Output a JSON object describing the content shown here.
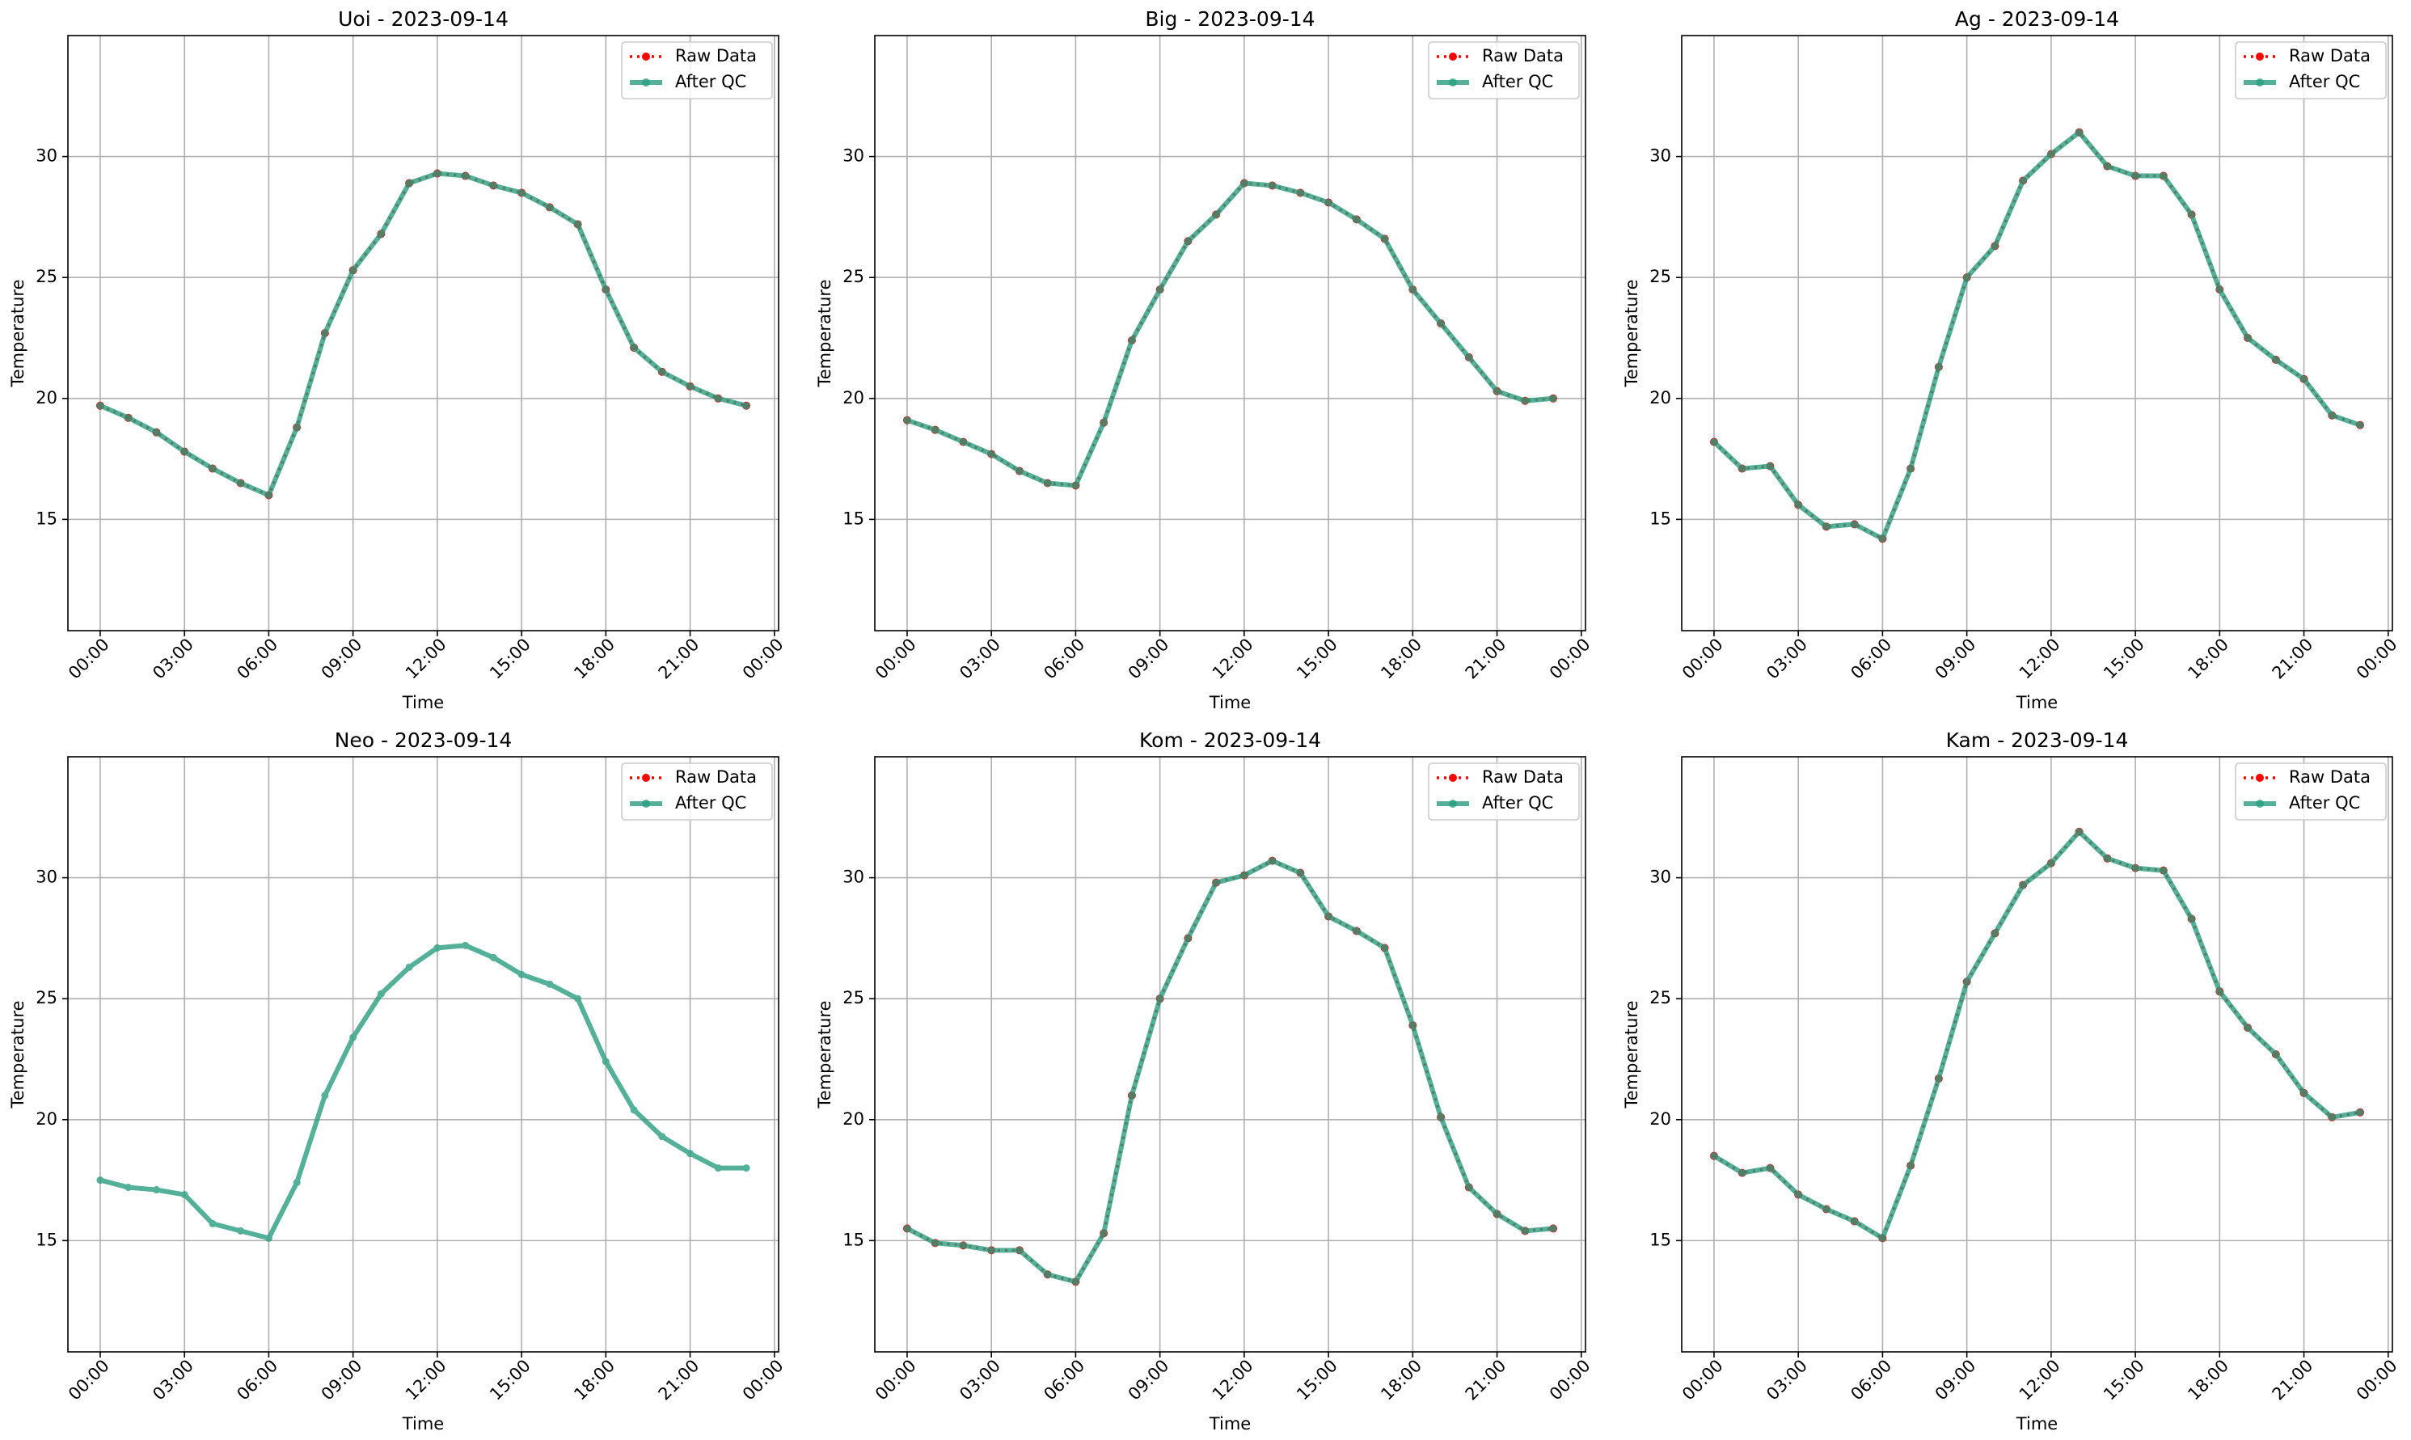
{
  "chart_data": [
    {
      "type": "line",
      "title": "Uoi - 2023-09-14",
      "xlabel": "Time",
      "ylabel": "Temperature",
      "grid": true,
      "legend": "upper right",
      "x": [
        0,
        1,
        2,
        3,
        4,
        5,
        6,
        7,
        8,
        9,
        10,
        11,
        12,
        13,
        14,
        15,
        16,
        17,
        18,
        19,
        20,
        21,
        22,
        23
      ],
      "xlim": [
        -1.15,
        24.15
      ],
      "ylim": [
        10.4,
        35
      ],
      "xticks": [
        {
          "value": 0,
          "label": "00:00"
        },
        {
          "value": 3,
          "label": "03:00"
        },
        {
          "value": 6,
          "label": "06:00"
        },
        {
          "value": 9,
          "label": "09:00"
        },
        {
          "value": 12,
          "label": "12:00"
        },
        {
          "value": 15,
          "label": "15:00"
        },
        {
          "value": 18,
          "label": "18:00"
        },
        {
          "value": 21,
          "label": "21:00"
        },
        {
          "value": 24,
          "label": "00:00"
        }
      ],
      "yticks": [
        15,
        20,
        25,
        30
      ],
      "series": [
        {
          "name": "Raw Data",
          "color": "red",
          "linestyle": ":",
          "values": [
            19.7,
            19.2,
            18.6,
            17.8,
            17.1,
            16.5,
            16.0,
            18.8,
            22.7,
            25.3,
            26.8,
            28.9,
            29.3,
            29.2,
            28.8,
            28.5,
            27.9,
            27.2,
            24.5,
            22.1,
            21.1,
            20.5,
            20.0,
            19.7
          ]
        },
        {
          "name": "After QC",
          "color": "#2a9d7f",
          "linestyle": "-",
          "values": [
            19.7,
            19.2,
            18.6,
            17.8,
            17.1,
            16.5,
            16.0,
            18.8,
            22.7,
            25.3,
            26.8,
            28.9,
            29.3,
            29.2,
            28.8,
            28.5,
            27.9,
            27.2,
            24.5,
            22.1,
            21.1,
            20.5,
            20.0,
            19.7
          ]
        }
      ]
    },
    {
      "type": "line",
      "title": "Big - 2023-09-14",
      "xlabel": "Time",
      "ylabel": "Temperature",
      "grid": true,
      "legend": "upper right",
      "x": [
        0,
        1,
        2,
        3,
        4,
        5,
        6,
        7,
        8,
        9,
        10,
        11,
        12,
        13,
        14,
        15,
        16,
        17,
        18,
        19,
        20,
        21,
        22,
        23
      ],
      "xlim": [
        -1.15,
        24.15
      ],
      "ylim": [
        10.4,
        35
      ],
      "xticks": [
        {
          "value": 0,
          "label": "00:00"
        },
        {
          "value": 3,
          "label": "03:00"
        },
        {
          "value": 6,
          "label": "06:00"
        },
        {
          "value": 9,
          "label": "09:00"
        },
        {
          "value": 12,
          "label": "12:00"
        },
        {
          "value": 15,
          "label": "15:00"
        },
        {
          "value": 18,
          "label": "18:00"
        },
        {
          "value": 21,
          "label": "21:00"
        },
        {
          "value": 24,
          "label": "00:00"
        }
      ],
      "yticks": [
        15,
        20,
        25,
        30
      ],
      "series": [
        {
          "name": "Raw Data",
          "color": "red",
          "linestyle": ":",
          "values": [
            19.1,
            18.7,
            18.2,
            17.7,
            17.0,
            16.5,
            16.4,
            19.0,
            22.4,
            24.5,
            26.5,
            27.6,
            28.9,
            28.8,
            28.5,
            28.1,
            27.4,
            26.6,
            24.5,
            23.1,
            21.7,
            20.3,
            19.9,
            20.0
          ]
        },
        {
          "name": "After QC",
          "color": "#2a9d7f",
          "linestyle": "-",
          "values": [
            19.1,
            18.7,
            18.2,
            17.7,
            17.0,
            16.5,
            16.4,
            19.0,
            22.4,
            24.5,
            26.5,
            27.6,
            28.9,
            28.8,
            28.5,
            28.1,
            27.4,
            26.6,
            24.5,
            23.1,
            21.7,
            20.3,
            19.9,
            20.0
          ]
        }
      ]
    },
    {
      "type": "line",
      "title": "Ag - 2023-09-14",
      "xlabel": "Time",
      "ylabel": "Temperature",
      "grid": true,
      "legend": "upper right",
      "x": [
        0,
        1,
        2,
        3,
        4,
        5,
        6,
        7,
        8,
        9,
        10,
        11,
        12,
        13,
        14,
        15,
        16,
        17,
        18,
        19,
        20,
        21,
        22,
        23
      ],
      "xlim": [
        -1.15,
        24.15
      ],
      "ylim": [
        10.4,
        35
      ],
      "xticks": [
        {
          "value": 0,
          "label": "00:00"
        },
        {
          "value": 3,
          "label": "03:00"
        },
        {
          "value": 6,
          "label": "06:00"
        },
        {
          "value": 9,
          "label": "09:00"
        },
        {
          "value": 12,
          "label": "12:00"
        },
        {
          "value": 15,
          "label": "15:00"
        },
        {
          "value": 18,
          "label": "18:00"
        },
        {
          "value": 21,
          "label": "21:00"
        },
        {
          "value": 24,
          "label": "00:00"
        }
      ],
      "yticks": [
        15,
        20,
        25,
        30
      ],
      "series": [
        {
          "name": "Raw Data",
          "color": "red",
          "linestyle": ":",
          "values": [
            18.2,
            17.1,
            17.2,
            15.6,
            14.7,
            14.8,
            14.2,
            17.1,
            21.3,
            25.0,
            26.3,
            29.0,
            30.1,
            31.0,
            29.6,
            29.2,
            29.2,
            27.6,
            24.5,
            22.5,
            21.6,
            20.8,
            19.3,
            18.9
          ]
        },
        {
          "name": "After QC",
          "color": "#2a9d7f",
          "linestyle": "-",
          "values": [
            18.2,
            17.1,
            17.2,
            15.6,
            14.7,
            14.8,
            14.2,
            17.1,
            21.3,
            25.0,
            26.3,
            29.0,
            30.1,
            31.0,
            29.6,
            29.2,
            29.2,
            27.6,
            24.5,
            22.5,
            21.6,
            20.8,
            19.3,
            18.9
          ]
        }
      ]
    },
    {
      "type": "line",
      "title": "Neo - 2023-09-14",
      "xlabel": "Time",
      "ylabel": "Temperature",
      "grid": true,
      "legend": "upper right",
      "x": [
        0,
        1,
        2,
        3,
        4,
        5,
        6,
        7,
        8,
        9,
        10,
        11,
        12,
        13,
        14,
        15,
        16,
        17,
        18,
        19,
        20,
        21,
        22,
        23
      ],
      "xlim": [
        -1.15,
        24.15
      ],
      "ylim": [
        10.4,
        35
      ],
      "xticks": [
        {
          "value": 0,
          "label": "00:00"
        },
        {
          "value": 3,
          "label": "03:00"
        },
        {
          "value": 6,
          "label": "06:00"
        },
        {
          "value": 9,
          "label": "09:00"
        },
        {
          "value": 12,
          "label": "12:00"
        },
        {
          "value": 15,
          "label": "15:00"
        },
        {
          "value": 18,
          "label": "18:00"
        },
        {
          "value": 21,
          "label": "21:00"
        },
        {
          "value": 24,
          "label": "00:00"
        }
      ],
      "yticks": [
        15,
        20,
        25,
        30
      ],
      "series": [
        {
          "name": "Raw Data",
          "color": "red",
          "linestyle": ":",
          "values": [
            null,
            null,
            null,
            null,
            null,
            null,
            null,
            null,
            null,
            null,
            null,
            null,
            null,
            null,
            null,
            null,
            null,
            null,
            null,
            null,
            null,
            null,
            null,
            null
          ]
        },
        {
          "name": "After QC",
          "color": "#2a9d7f",
          "linestyle": "-",
          "values": [
            17.5,
            17.2,
            17.1,
            16.9,
            15.7,
            15.4,
            15.1,
            17.4,
            21.0,
            23.4,
            25.2,
            26.3,
            27.1,
            27.2,
            26.7,
            26.0,
            25.6,
            25.0,
            22.4,
            20.4,
            19.3,
            18.6,
            18.0,
            18.0
          ]
        }
      ]
    },
    {
      "type": "line",
      "title": "Kom - 2023-09-14",
      "xlabel": "Time",
      "ylabel": "Temperature",
      "grid": true,
      "legend": "upper right",
      "x": [
        0,
        1,
        2,
        3,
        4,
        5,
        6,
        7,
        8,
        9,
        10,
        11,
        12,
        13,
        14,
        15,
        16,
        17,
        18,
        19,
        20,
        21,
        22,
        23
      ],
      "xlim": [
        -1.15,
        24.15
      ],
      "ylim": [
        10.4,
        35
      ],
      "xticks": [
        {
          "value": 0,
          "label": "00:00"
        },
        {
          "value": 3,
          "label": "03:00"
        },
        {
          "value": 6,
          "label": "06:00"
        },
        {
          "value": 9,
          "label": "09:00"
        },
        {
          "value": 12,
          "label": "12:00"
        },
        {
          "value": 15,
          "label": "15:00"
        },
        {
          "value": 18,
          "label": "18:00"
        },
        {
          "value": 21,
          "label": "21:00"
        },
        {
          "value": 24,
          "label": "00:00"
        }
      ],
      "yticks": [
        15,
        20,
        25,
        30
      ],
      "series": [
        {
          "name": "Raw Data",
          "color": "red",
          "linestyle": ":",
          "values": [
            15.5,
            14.9,
            14.8,
            14.6,
            14.6,
            13.6,
            13.3,
            15.3,
            21.0,
            25.0,
            27.5,
            29.8,
            30.1,
            30.7,
            30.2,
            28.4,
            27.8,
            27.1,
            23.9,
            20.1,
            17.2,
            16.1,
            15.4,
            15.5
          ]
        },
        {
          "name": "After QC",
          "color": "#2a9d7f",
          "linestyle": "-",
          "values": [
            15.5,
            14.9,
            14.8,
            14.6,
            14.6,
            13.6,
            13.3,
            15.3,
            21.0,
            25.0,
            27.5,
            29.8,
            30.1,
            30.7,
            30.2,
            28.4,
            27.8,
            27.1,
            23.9,
            20.1,
            17.2,
            16.1,
            15.4,
            15.5
          ]
        }
      ]
    },
    {
      "type": "line",
      "title": "Kam - 2023-09-14",
      "xlabel": "Time",
      "ylabel": "Temperature",
      "grid": true,
      "legend": "upper right",
      "x": [
        0,
        1,
        2,
        3,
        4,
        5,
        6,
        7,
        8,
        9,
        10,
        11,
        12,
        13,
        14,
        15,
        16,
        17,
        18,
        19,
        20,
        21,
        22,
        23
      ],
      "xlim": [
        -1.15,
        24.15
      ],
      "ylim": [
        10.4,
        35
      ],
      "xticks": [
        {
          "value": 0,
          "label": "00:00"
        },
        {
          "value": 3,
          "label": "03:00"
        },
        {
          "value": 6,
          "label": "06:00"
        },
        {
          "value": 9,
          "label": "09:00"
        },
        {
          "value": 12,
          "label": "12:00"
        },
        {
          "value": 15,
          "label": "15:00"
        },
        {
          "value": 18,
          "label": "18:00"
        },
        {
          "value": 21,
          "label": "21:00"
        },
        {
          "value": 24,
          "label": "00:00"
        }
      ],
      "yticks": [
        15,
        20,
        25,
        30
      ],
      "series": [
        {
          "name": "Raw Data",
          "color": "red",
          "linestyle": ":",
          "values": [
            18.5,
            17.8,
            18.0,
            16.9,
            16.3,
            15.8,
            15.1,
            18.1,
            21.7,
            25.7,
            27.7,
            29.7,
            30.6,
            31.9,
            30.8,
            30.4,
            30.3,
            28.3,
            25.3,
            23.8,
            22.7,
            21.1,
            20.1,
            20.3
          ]
        },
        {
          "name": "After QC",
          "color": "#2a9d7f",
          "linestyle": "-",
          "values": [
            18.5,
            17.8,
            18.0,
            16.9,
            16.3,
            15.8,
            15.1,
            18.1,
            21.7,
            25.7,
            27.7,
            29.7,
            30.6,
            31.9,
            30.8,
            30.4,
            30.3,
            28.3,
            25.3,
            23.8,
            22.7,
            21.1,
            20.1,
            20.3
          ]
        }
      ]
    }
  ]
}
